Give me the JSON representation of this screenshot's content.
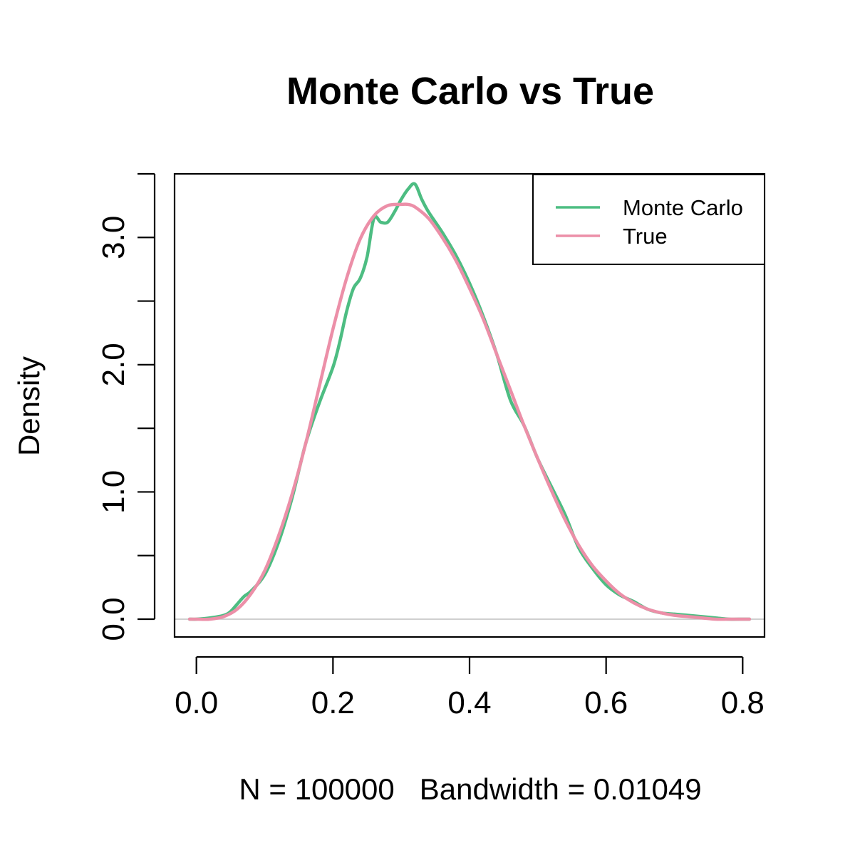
{
  "chart_data": {
    "type": "line",
    "title": "Monte Carlo vs True",
    "xlabel": "N = 100000   Bandwidth = 0.01049",
    "ylabel": "Density",
    "xlim": [
      -0.032,
      0.832
    ],
    "ylim": [
      -0.14,
      3.5
    ],
    "x_ticks": [
      0.0,
      0.2,
      0.4,
      0.6,
      0.8
    ],
    "x_tick_labels": [
      "0.0",
      "0.2",
      "0.4",
      "0.6",
      "0.8"
    ],
    "y_ticks": [
      0.0,
      0.5,
      1.0,
      1.5,
      2.0,
      2.5,
      3.0,
      3.5
    ],
    "y_tick_labels": [
      "0.0",
      "",
      "1.0",
      "",
      "2.0",
      "",
      "3.0",
      ""
    ],
    "legend": {
      "position": "top-right"
    },
    "colors": {
      "monte_carlo": "#4dbd82",
      "true": "#ec8fa8",
      "zero_line": "#c0c0c0",
      "frame": "#000000"
    },
    "series": [
      {
        "name": "Monte Carlo",
        "color": "#4dbd82",
        "x": [
          -0.01,
          0.0,
          0.02,
          0.04,
          0.05,
          0.06,
          0.07,
          0.08,
          0.1,
          0.12,
          0.14,
          0.16,
          0.18,
          0.2,
          0.21,
          0.22,
          0.23,
          0.24,
          0.25,
          0.26,
          0.27,
          0.28,
          0.29,
          0.3,
          0.31,
          0.32,
          0.33,
          0.34,
          0.36,
          0.38,
          0.4,
          0.42,
          0.44,
          0.46,
          0.48,
          0.5,
          0.52,
          0.54,
          0.56,
          0.58,
          0.6,
          0.62,
          0.64,
          0.66,
          0.68,
          0.7,
          0.72,
          0.74,
          0.76,
          0.78,
          0.8,
          0.81
        ],
        "y": [
          0.0,
          0.0,
          0.01,
          0.03,
          0.06,
          0.12,
          0.18,
          0.22,
          0.35,
          0.6,
          0.95,
          1.38,
          1.7,
          1.98,
          2.18,
          2.42,
          2.6,
          2.68,
          2.85,
          3.15,
          3.12,
          3.12,
          3.2,
          3.3,
          3.38,
          3.42,
          3.3,
          3.2,
          3.04,
          2.86,
          2.64,
          2.38,
          2.08,
          1.72,
          1.52,
          1.26,
          1.04,
          0.82,
          0.56,
          0.4,
          0.27,
          0.19,
          0.14,
          0.08,
          0.05,
          0.04,
          0.03,
          0.02,
          0.01,
          0.0,
          0.0,
          0.0
        ]
      },
      {
        "name": "True",
        "color": "#ec8fa8",
        "x": [
          -0.01,
          0.0,
          0.02,
          0.04,
          0.06,
          0.08,
          0.1,
          0.12,
          0.14,
          0.16,
          0.18,
          0.2,
          0.22,
          0.24,
          0.26,
          0.28,
          0.3,
          0.31,
          0.32,
          0.34,
          0.36,
          0.38,
          0.4,
          0.42,
          0.44,
          0.46,
          0.48,
          0.5,
          0.52,
          0.54,
          0.56,
          0.58,
          0.6,
          0.62,
          0.64,
          0.66,
          0.68,
          0.7,
          0.72,
          0.74,
          0.76,
          0.78,
          0.8,
          0.81
        ],
        "y": [
          0.0,
          0.0,
          0.0,
          0.02,
          0.08,
          0.2,
          0.38,
          0.65,
          0.98,
          1.38,
          1.83,
          2.28,
          2.68,
          2.99,
          3.17,
          3.25,
          3.26,
          3.26,
          3.24,
          3.15,
          3.0,
          2.82,
          2.6,
          2.36,
          2.08,
          1.8,
          1.52,
          1.26,
          1.01,
          0.78,
          0.58,
          0.42,
          0.3,
          0.2,
          0.13,
          0.08,
          0.05,
          0.03,
          0.02,
          0.01,
          0.0,
          0.0,
          0.0,
          0.0
        ]
      }
    ]
  }
}
